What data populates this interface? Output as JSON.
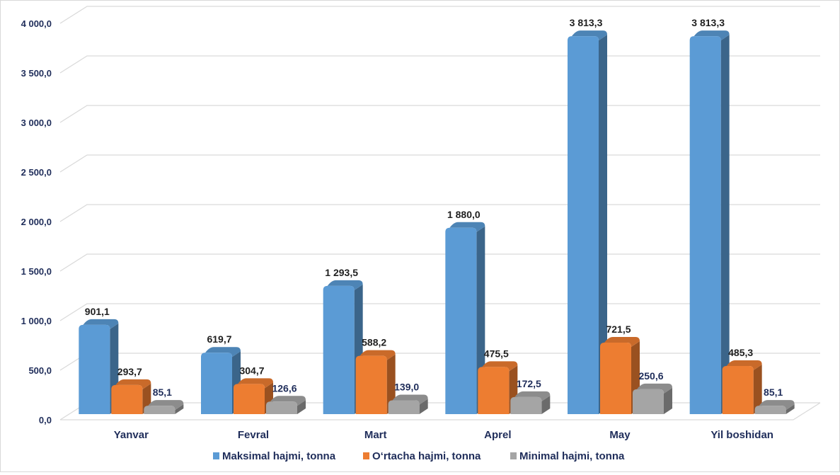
{
  "chart_data": {
    "type": "bar",
    "categories": [
      "Yanvar",
      "Fevral",
      "Mart",
      "Aprel",
      "May",
      "Yil boshidan"
    ],
    "series": [
      {
        "name": "Maksimal hajmi, tonna",
        "values": [
          901.1,
          619.7,
          1293.5,
          1880.0,
          3813.3,
          3813.3
        ],
        "labels": [
          "901,1",
          "619,7",
          "1 293,5",
          "1 880,0",
          "3 813,3",
          "3 813,3"
        ],
        "color": "#5b9bd5"
      },
      {
        "name": "O‘rtacha hajmi, tonna",
        "values": [
          293.7,
          304.7,
          588.2,
          475.5,
          721.5,
          485.3
        ],
        "labels": [
          "293,7",
          "304,7",
          "588,2",
          "475,5",
          "721,5",
          "485,3"
        ],
        "color": "#ed7d31"
      },
      {
        "name": "Minimal hajmi, tonna",
        "values": [
          85.1,
          126.6,
          139.0,
          172.5,
          250.6,
          85.1
        ],
        "labels": [
          "85,1",
          "126,6",
          "139,0",
          "172,5",
          "250,6",
          "85,1"
        ],
        "color": "#a5a5a5"
      }
    ],
    "y_ticks": [
      0,
      500,
      1000,
      1500,
      2000,
      2500,
      3000,
      3500,
      4000
    ],
    "y_tick_labels": [
      "0,0",
      "500,0",
      "1 000,0",
      "1 500,0",
      "2 000,0",
      "2 500,0",
      "3 000,0",
      "3 500,0",
      "4 000,0"
    ],
    "ylim": [
      0,
      4000
    ],
    "grid": true,
    "style": "3d-clustered-column",
    "legend_position": "bottom"
  }
}
